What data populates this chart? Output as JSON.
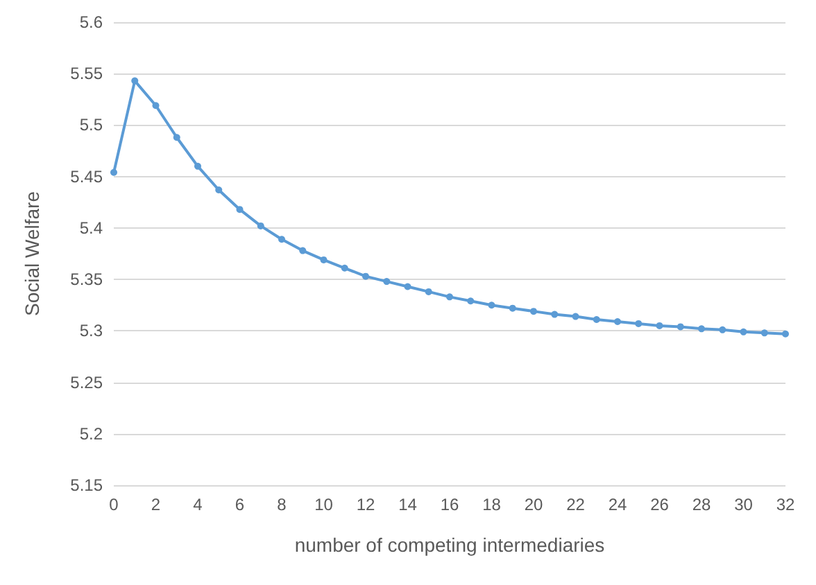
{
  "chart_data": {
    "type": "line",
    "xlabel": "number of competing intermediaries",
    "ylabel": "Social Welfare",
    "x": [
      0,
      1,
      2,
      3,
      4,
      5,
      6,
      7,
      8,
      9,
      10,
      11,
      12,
      13,
      14,
      15,
      16,
      17,
      18,
      19,
      20,
      21,
      22,
      23,
      24,
      25,
      26,
      27,
      28,
      29,
      30,
      31,
      32
    ],
    "series": [
      {
        "color": "#5b9bd5",
        "values": [
          5.454,
          5.543,
          5.519,
          5.488,
          5.46,
          5.437,
          5.418,
          5.402,
          5.389,
          5.378,
          5.369,
          5.361,
          5.353,
          5.348,
          5.343,
          5.338,
          5.333,
          5.329,
          5.325,
          5.322,
          5.319,
          5.316,
          5.314,
          5.311,
          5.309,
          5.307,
          5.305,
          5.304,
          5.302,
          5.301,
          5.299,
          5.298,
          5.297
        ]
      }
    ],
    "xlim": [
      0,
      32
    ],
    "xticks": [
      0,
      2,
      4,
      6,
      8,
      10,
      12,
      14,
      16,
      18,
      20,
      22,
      24,
      26,
      28,
      30,
      32
    ],
    "ylim": [
      5.15,
      5.6
    ],
    "yticks": [
      5.15,
      5.2,
      5.25,
      5.3,
      5.35,
      5.4,
      5.45,
      5.5,
      5.55,
      5.6
    ],
    "grid": "y",
    "marker": "circle",
    "line_style": "solid"
  }
}
